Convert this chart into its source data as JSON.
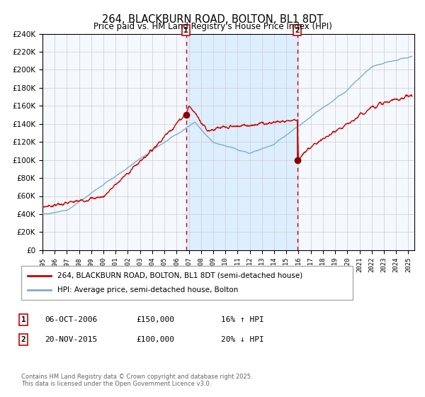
{
  "title": "264, BLACKBURN ROAD, BOLTON, BL1 8DT",
  "subtitle": "Price paid vs. HM Land Registry's House Price Index (HPI)",
  "title_fontsize": 11,
  "subtitle_fontsize": 9,
  "xlim_start": 1995.0,
  "xlim_end": 2025.5,
  "ylim_min": 0,
  "ylim_max": 240000,
  "yticks": [
    0,
    20000,
    40000,
    60000,
    80000,
    100000,
    120000,
    140000,
    160000,
    180000,
    200000,
    220000,
    240000
  ],
  "ytick_labels": [
    "£0",
    "£20K",
    "£40K",
    "£60K",
    "£80K",
    "£100K",
    "£120K",
    "£140K",
    "£160K",
    "£180K",
    "£200K",
    "£220K",
    "£240K"
  ],
  "hpi_color": "#7bafd4",
  "price_color": "#cc0000",
  "marker_color": "#880000",
  "vline_color": "#cc0000",
  "shade_color": "#ddeeff",
  "grid_color": "#cccccc",
  "plot_bg_color": "#f5f8fc",
  "legend_label_price": "264, BLACKBURN ROAD, BOLTON, BL1 8DT (semi-detached house)",
  "legend_label_hpi": "HPI: Average price, semi-detached house, Bolton",
  "event1_x": 2006.77,
  "event1_y": 150000,
  "event1_label": "1",
  "event1_date": "06-OCT-2006",
  "event1_price": "£150,000",
  "event1_hpi": "16% ↑ HPI",
  "event2_x": 2015.9,
  "event2_y": 100000,
  "event2_label": "2",
  "event2_date": "20-NOV-2015",
  "event2_price": "£100,000",
  "event2_hpi": "20% ↓ HPI",
  "footer": "Contains HM Land Registry data © Crown copyright and database right 2025.\nThis data is licensed under the Open Government Licence v3.0.",
  "xtick_years": [
    1995,
    1996,
    1997,
    1998,
    1999,
    2000,
    2001,
    2002,
    2003,
    2004,
    2005,
    2006,
    2007,
    2008,
    2009,
    2010,
    2011,
    2012,
    2013,
    2014,
    2015,
    2016,
    2017,
    2018,
    2019,
    2020,
    2021,
    2022,
    2023,
    2024,
    2025
  ]
}
